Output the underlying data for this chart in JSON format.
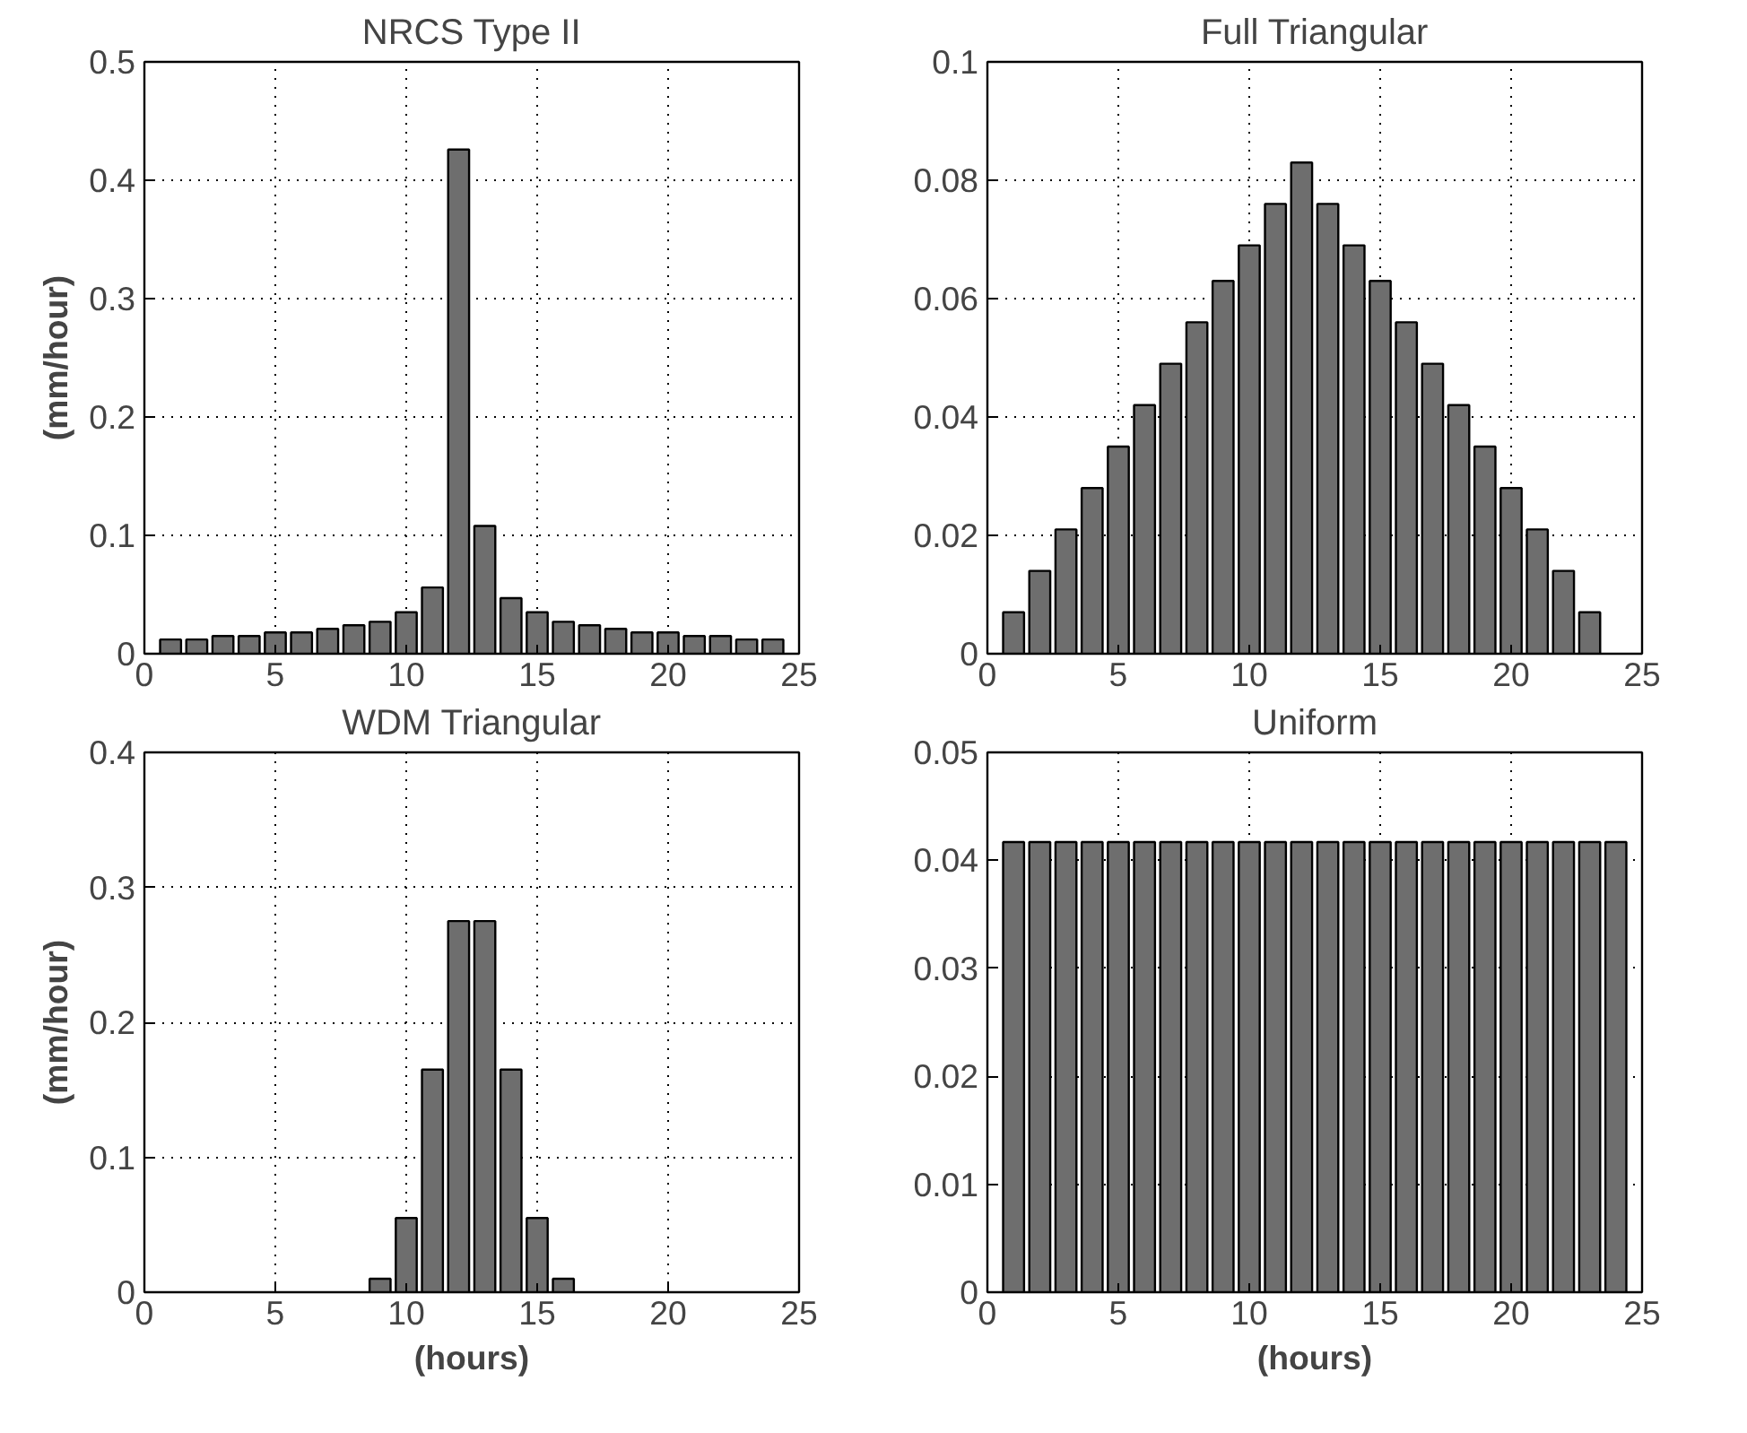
{
  "chart_data": [
    {
      "type": "bar",
      "title": "NRCS Type II",
      "ylabel": "(mm/hour)",
      "x": [
        1,
        2,
        3,
        4,
        5,
        6,
        7,
        8,
        9,
        10,
        11,
        12,
        13,
        14,
        15,
        16,
        17,
        18,
        19,
        20,
        21,
        22,
        23,
        24
      ],
      "color": "#6e6e6e",
      "values": [
        0.012,
        0.012,
        0.015,
        0.015,
        0.018,
        0.018,
        0.021,
        0.024,
        0.027,
        0.035,
        0.056,
        0.426,
        0.108,
        0.047,
        0.035,
        0.027,
        0.024,
        0.021,
        0.018,
        0.018,
        0.015,
        0.015,
        0.012,
        0.012
      ],
      "xlim": [
        0,
        25
      ],
      "xticks": [
        0,
        5,
        10,
        15,
        20,
        25
      ],
      "ylim": [
        0,
        0.5
      ],
      "yticks": [
        0,
        0.1,
        0.2,
        0.3,
        0.4,
        0.5
      ],
      "grid": true
    },
    {
      "type": "bar",
      "title": "Full Triangular",
      "x": [
        1,
        2,
        3,
        4,
        5,
        6,
        7,
        8,
        9,
        10,
        11,
        12,
        13,
        14,
        15,
        16,
        17,
        18,
        19,
        20,
        21,
        22,
        23
      ],
      "color": "#6e6e6e",
      "values": [
        0.007,
        0.014,
        0.021,
        0.028,
        0.035,
        0.042,
        0.049,
        0.056,
        0.063,
        0.069,
        0.076,
        0.083,
        0.076,
        0.069,
        0.063,
        0.056,
        0.049,
        0.042,
        0.035,
        0.028,
        0.021,
        0.014,
        0.007
      ],
      "xlim": [
        0,
        25
      ],
      "xticks": [
        0,
        5,
        10,
        15,
        20,
        25
      ],
      "ylim": [
        0,
        0.1
      ],
      "yticks": [
        0,
        0.02,
        0.04,
        0.06,
        0.08,
        0.1
      ],
      "grid": true
    },
    {
      "type": "bar",
      "title": "WDM Triangular",
      "ylabel": "(mm/hour)",
      "xlabel": "(hours)",
      "x": [
        9,
        10,
        11,
        12,
        13,
        14,
        15,
        16
      ],
      "color": "#6e6e6e",
      "values": [
        0.01,
        0.055,
        0.165,
        0.275,
        0.275,
        0.165,
        0.055,
        0.01
      ],
      "xlim": [
        0,
        25
      ],
      "xticks": [
        0,
        5,
        10,
        15,
        20,
        25
      ],
      "ylim": [
        0,
        0.4
      ],
      "yticks": [
        0,
        0.1,
        0.2,
        0.3,
        0.4
      ],
      "grid": true
    },
    {
      "type": "bar",
      "title": "Uniform",
      "xlabel": "(hours)",
      "x": [
        1,
        2,
        3,
        4,
        5,
        6,
        7,
        8,
        9,
        10,
        11,
        12,
        13,
        14,
        15,
        16,
        17,
        18,
        19,
        20,
        21,
        22,
        23,
        24
      ],
      "color": "#6e6e6e",
      "values": [
        0.0417,
        0.0417,
        0.0417,
        0.0417,
        0.0417,
        0.0417,
        0.0417,
        0.0417,
        0.0417,
        0.0417,
        0.0417,
        0.0417,
        0.0417,
        0.0417,
        0.0417,
        0.0417,
        0.0417,
        0.0417,
        0.0417,
        0.0417,
        0.0417,
        0.0417,
        0.0417,
        0.0417
      ],
      "xlim": [
        0,
        25
      ],
      "xticks": [
        0,
        5,
        10,
        15,
        20,
        25
      ],
      "ylim": [
        0,
        0.05
      ],
      "yticks": [
        0,
        0.01,
        0.02,
        0.03,
        0.04,
        0.05
      ],
      "grid": true
    }
  ]
}
